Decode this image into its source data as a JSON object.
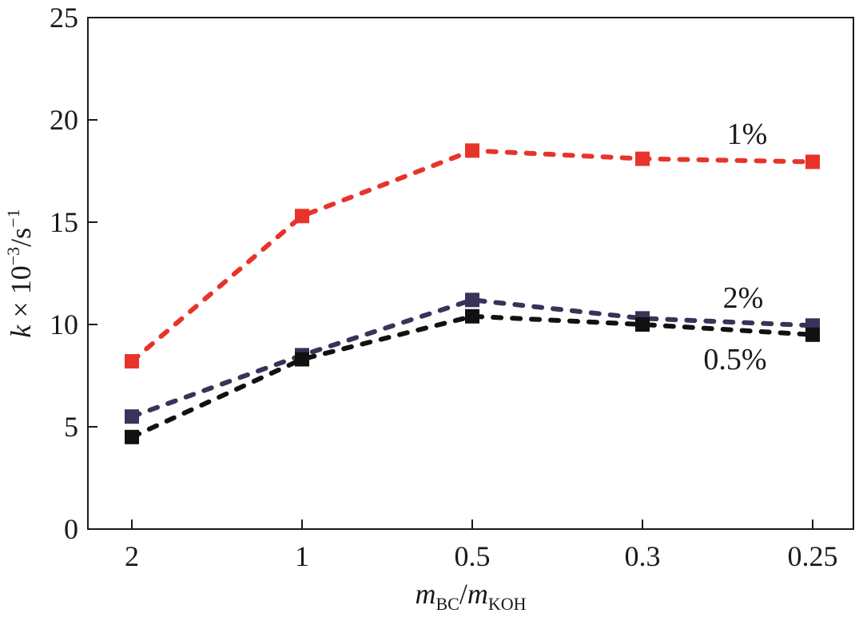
{
  "chart_data": {
    "type": "line",
    "categories": [
      "2",
      "1",
      "0.5",
      "0.3",
      "0.25"
    ],
    "xlabel": {
      "main": "m",
      "sub1": "BC",
      "slash": "/",
      "main2": "m",
      "sub2": "KOH"
    },
    "ylabel": {
      "k": "k",
      "times": " × 10",
      "exp": "−3",
      "unit": "/s",
      "unit_exp": "−1"
    },
    "ylim": [
      0,
      25
    ],
    "yticks": [
      0,
      5,
      10,
      15,
      20,
      25
    ],
    "grid": false,
    "series": [
      {
        "name": "1%",
        "color": "#e8332b",
        "values": [
          8.2,
          15.3,
          18.5,
          18.1,
          17.95
        ]
      },
      {
        "name": "2%",
        "color": "#3a3258",
        "values": [
          5.5,
          8.5,
          11.2,
          10.3,
          9.95
        ]
      },
      {
        "name": "0.5%",
        "color": "#111111",
        "values": [
          4.5,
          8.3,
          10.4,
          10.0,
          9.5
        ]
      }
    ]
  }
}
